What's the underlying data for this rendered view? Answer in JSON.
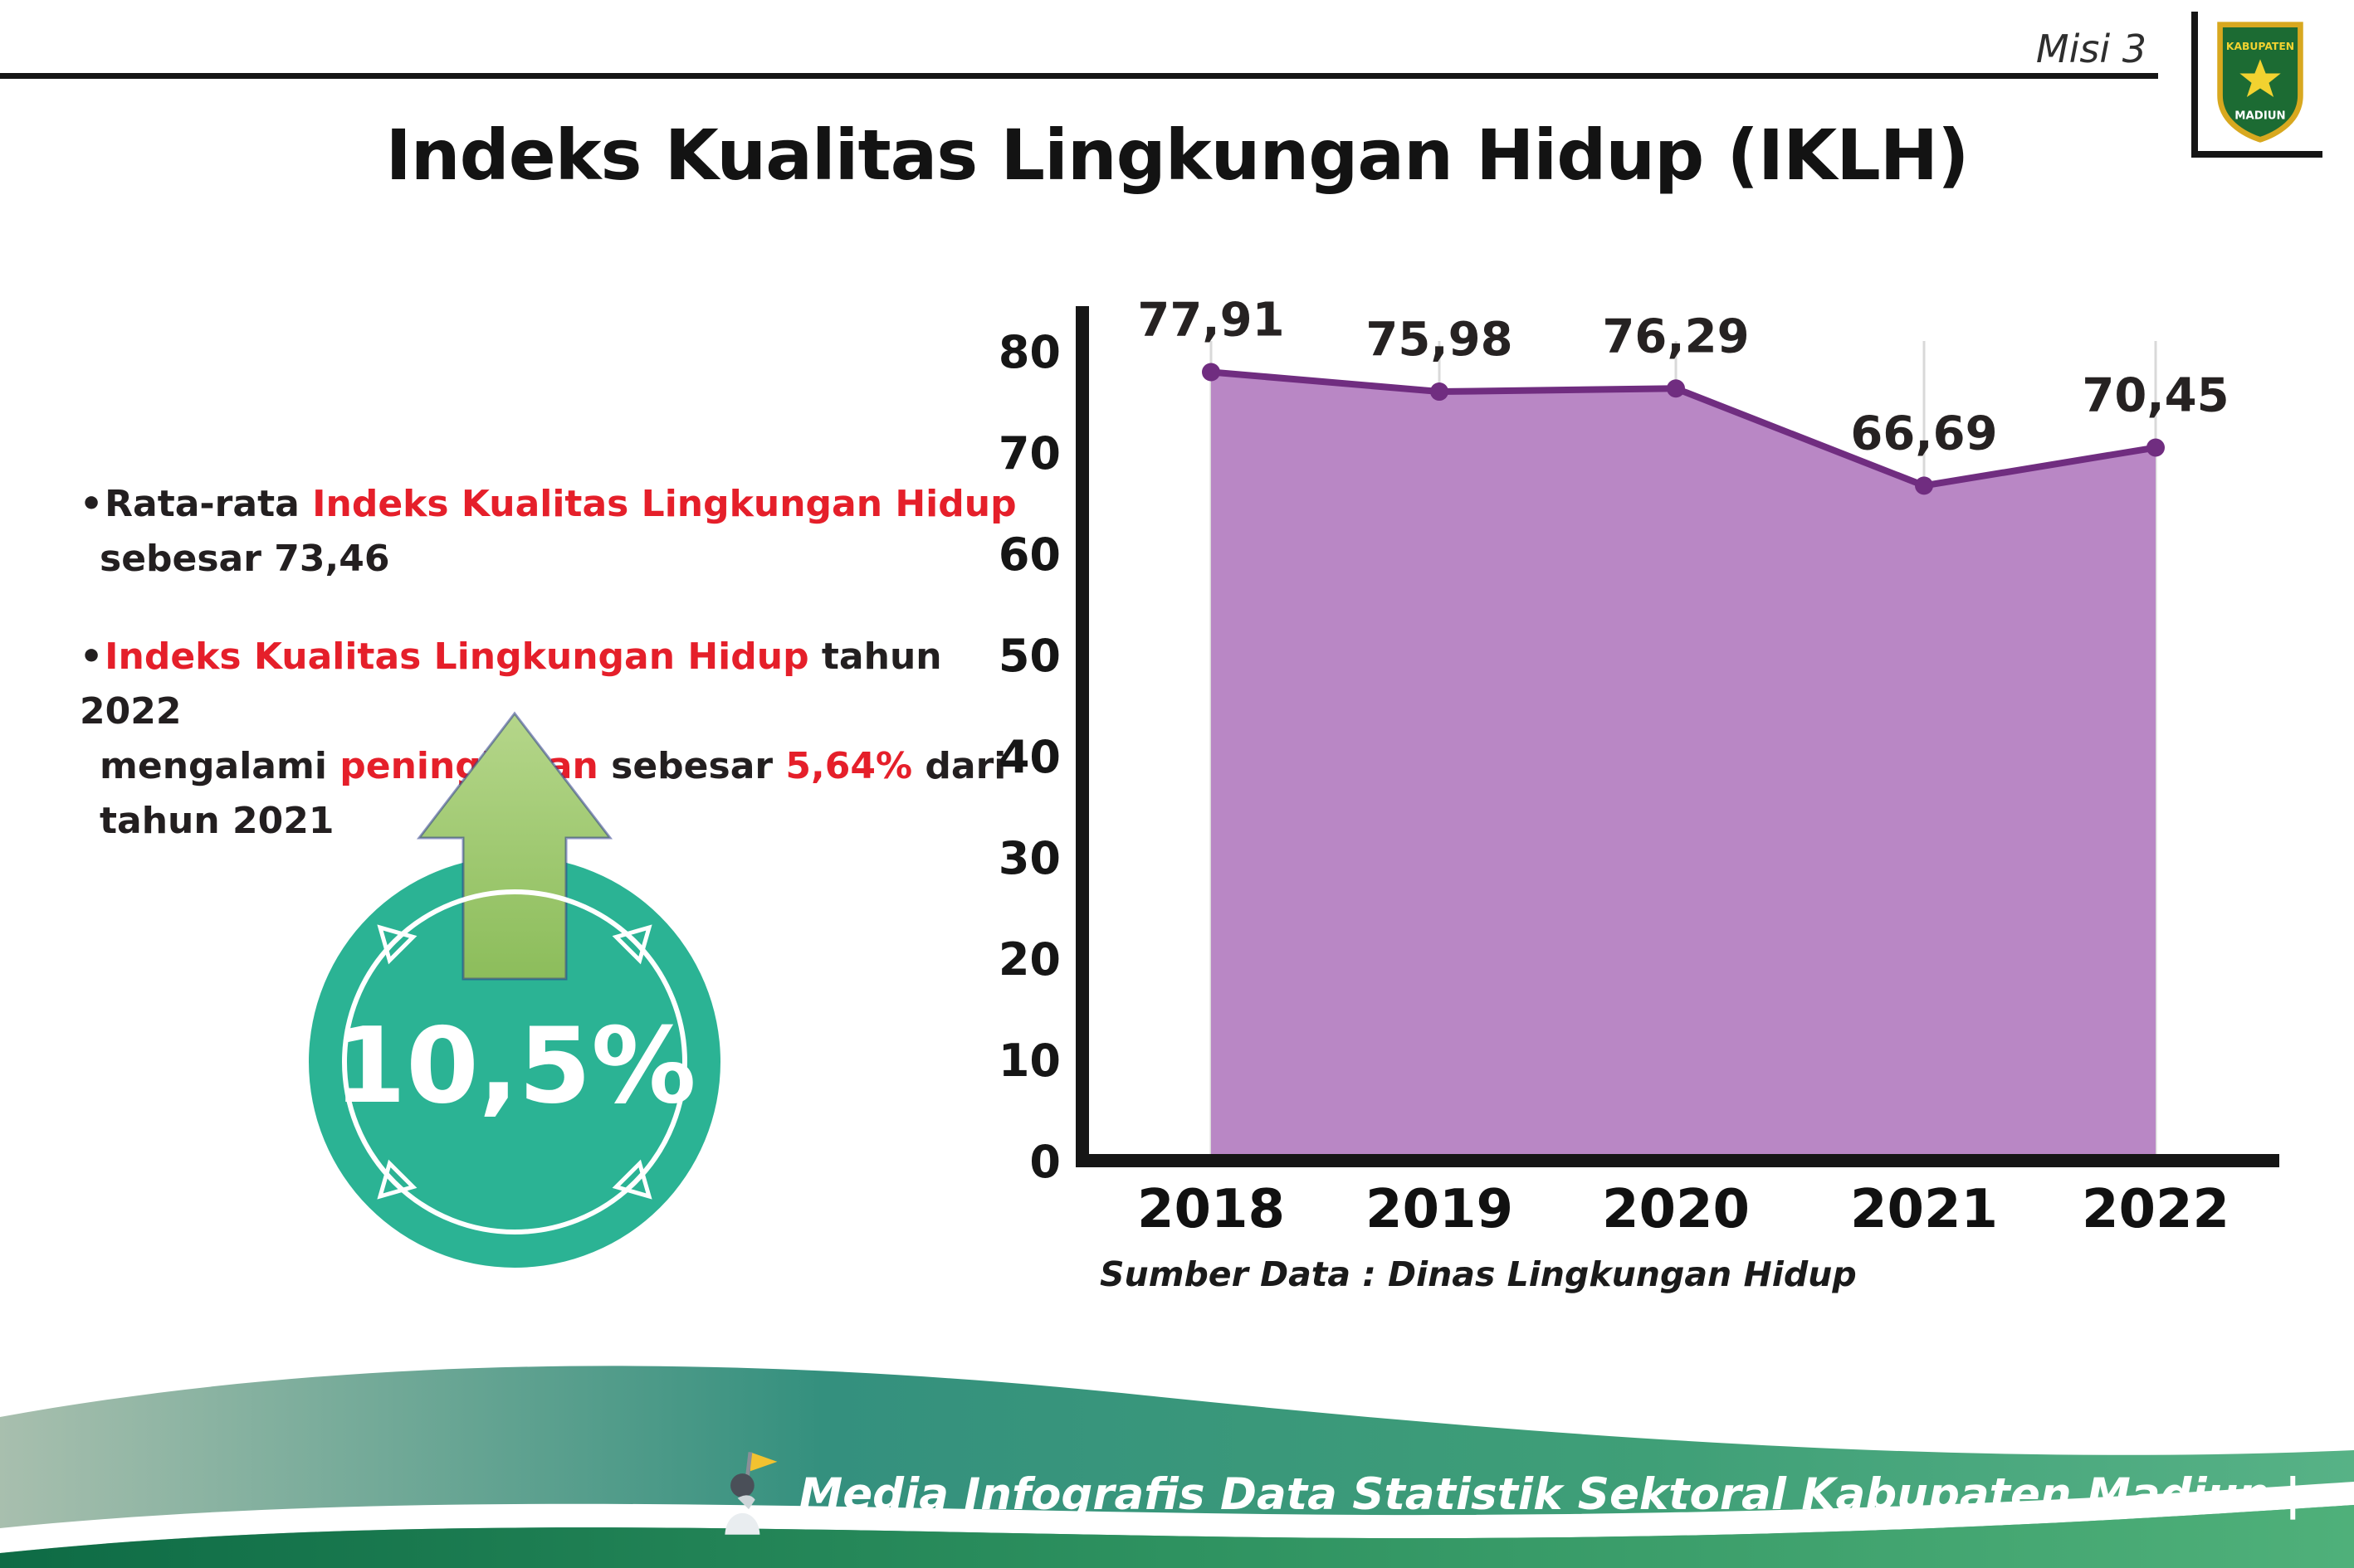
{
  "header": {
    "misi_label": "Misi 3",
    "title": "Indeks Kualitas Lingkungan Hidup (IKLH)",
    "logo": {
      "top_text": "KABUPATEN",
      "bottom_text": "MADIUN"
    }
  },
  "bullets": {
    "marker": "•",
    "items": [
      {
        "lines": [
          [
            {
              "t": "Rata-rata ",
              "c": "dark"
            },
            {
              "t": "Indeks Kualitas Lingkungan Hidup",
              "c": "red"
            }
          ],
          [
            {
              "t": "sebesar 73,46",
              "c": "dark"
            }
          ]
        ]
      },
      {
        "lines": [
          [
            {
              "t": "Indeks Kualitas Lingkungan Hidup",
              "c": "red"
            },
            {
              "t": " tahun 2022",
              "c": "dark"
            }
          ],
          [
            {
              "t": "mengalami ",
              "c": "dark"
            },
            {
              "t": "peningkatan",
              "c": "red"
            },
            {
              "t": " sebesar ",
              "c": "dark"
            },
            {
              "t": "5,64%",
              "c": "red"
            },
            {
              "t": " dari",
              "c": "dark"
            }
          ],
          [
            {
              "t": "tahun 2021",
              "c": "dark"
            }
          ]
        ]
      }
    ]
  },
  "badge": {
    "value": "10,5%",
    "circle_color": "#2bb394",
    "arrow_color": "#9dc968"
  },
  "chart_data": {
    "type": "area",
    "categories": [
      "2018",
      "2019",
      "2020",
      "2021",
      "2022"
    ],
    "values": [
      77.91,
      75.98,
      76.29,
      66.69,
      70.45
    ],
    "value_labels": [
      "77,91",
      "75,98",
      "76,29",
      "66,69",
      "70,45"
    ],
    "ylim": [
      0,
      80
    ],
    "yticks": [
      0,
      10,
      20,
      30,
      40,
      50,
      60,
      70,
      80
    ],
    "grid": "vertical-light",
    "legend_position": "none",
    "area_fill": "#b987c5",
    "line_color": "#702d80",
    "source": "Sumber Data : Dinas Lingkungan Hidup"
  },
  "footer": {
    "text": "Media Infografis Data Statistik Sektoral Kabupaten Madiun |"
  }
}
